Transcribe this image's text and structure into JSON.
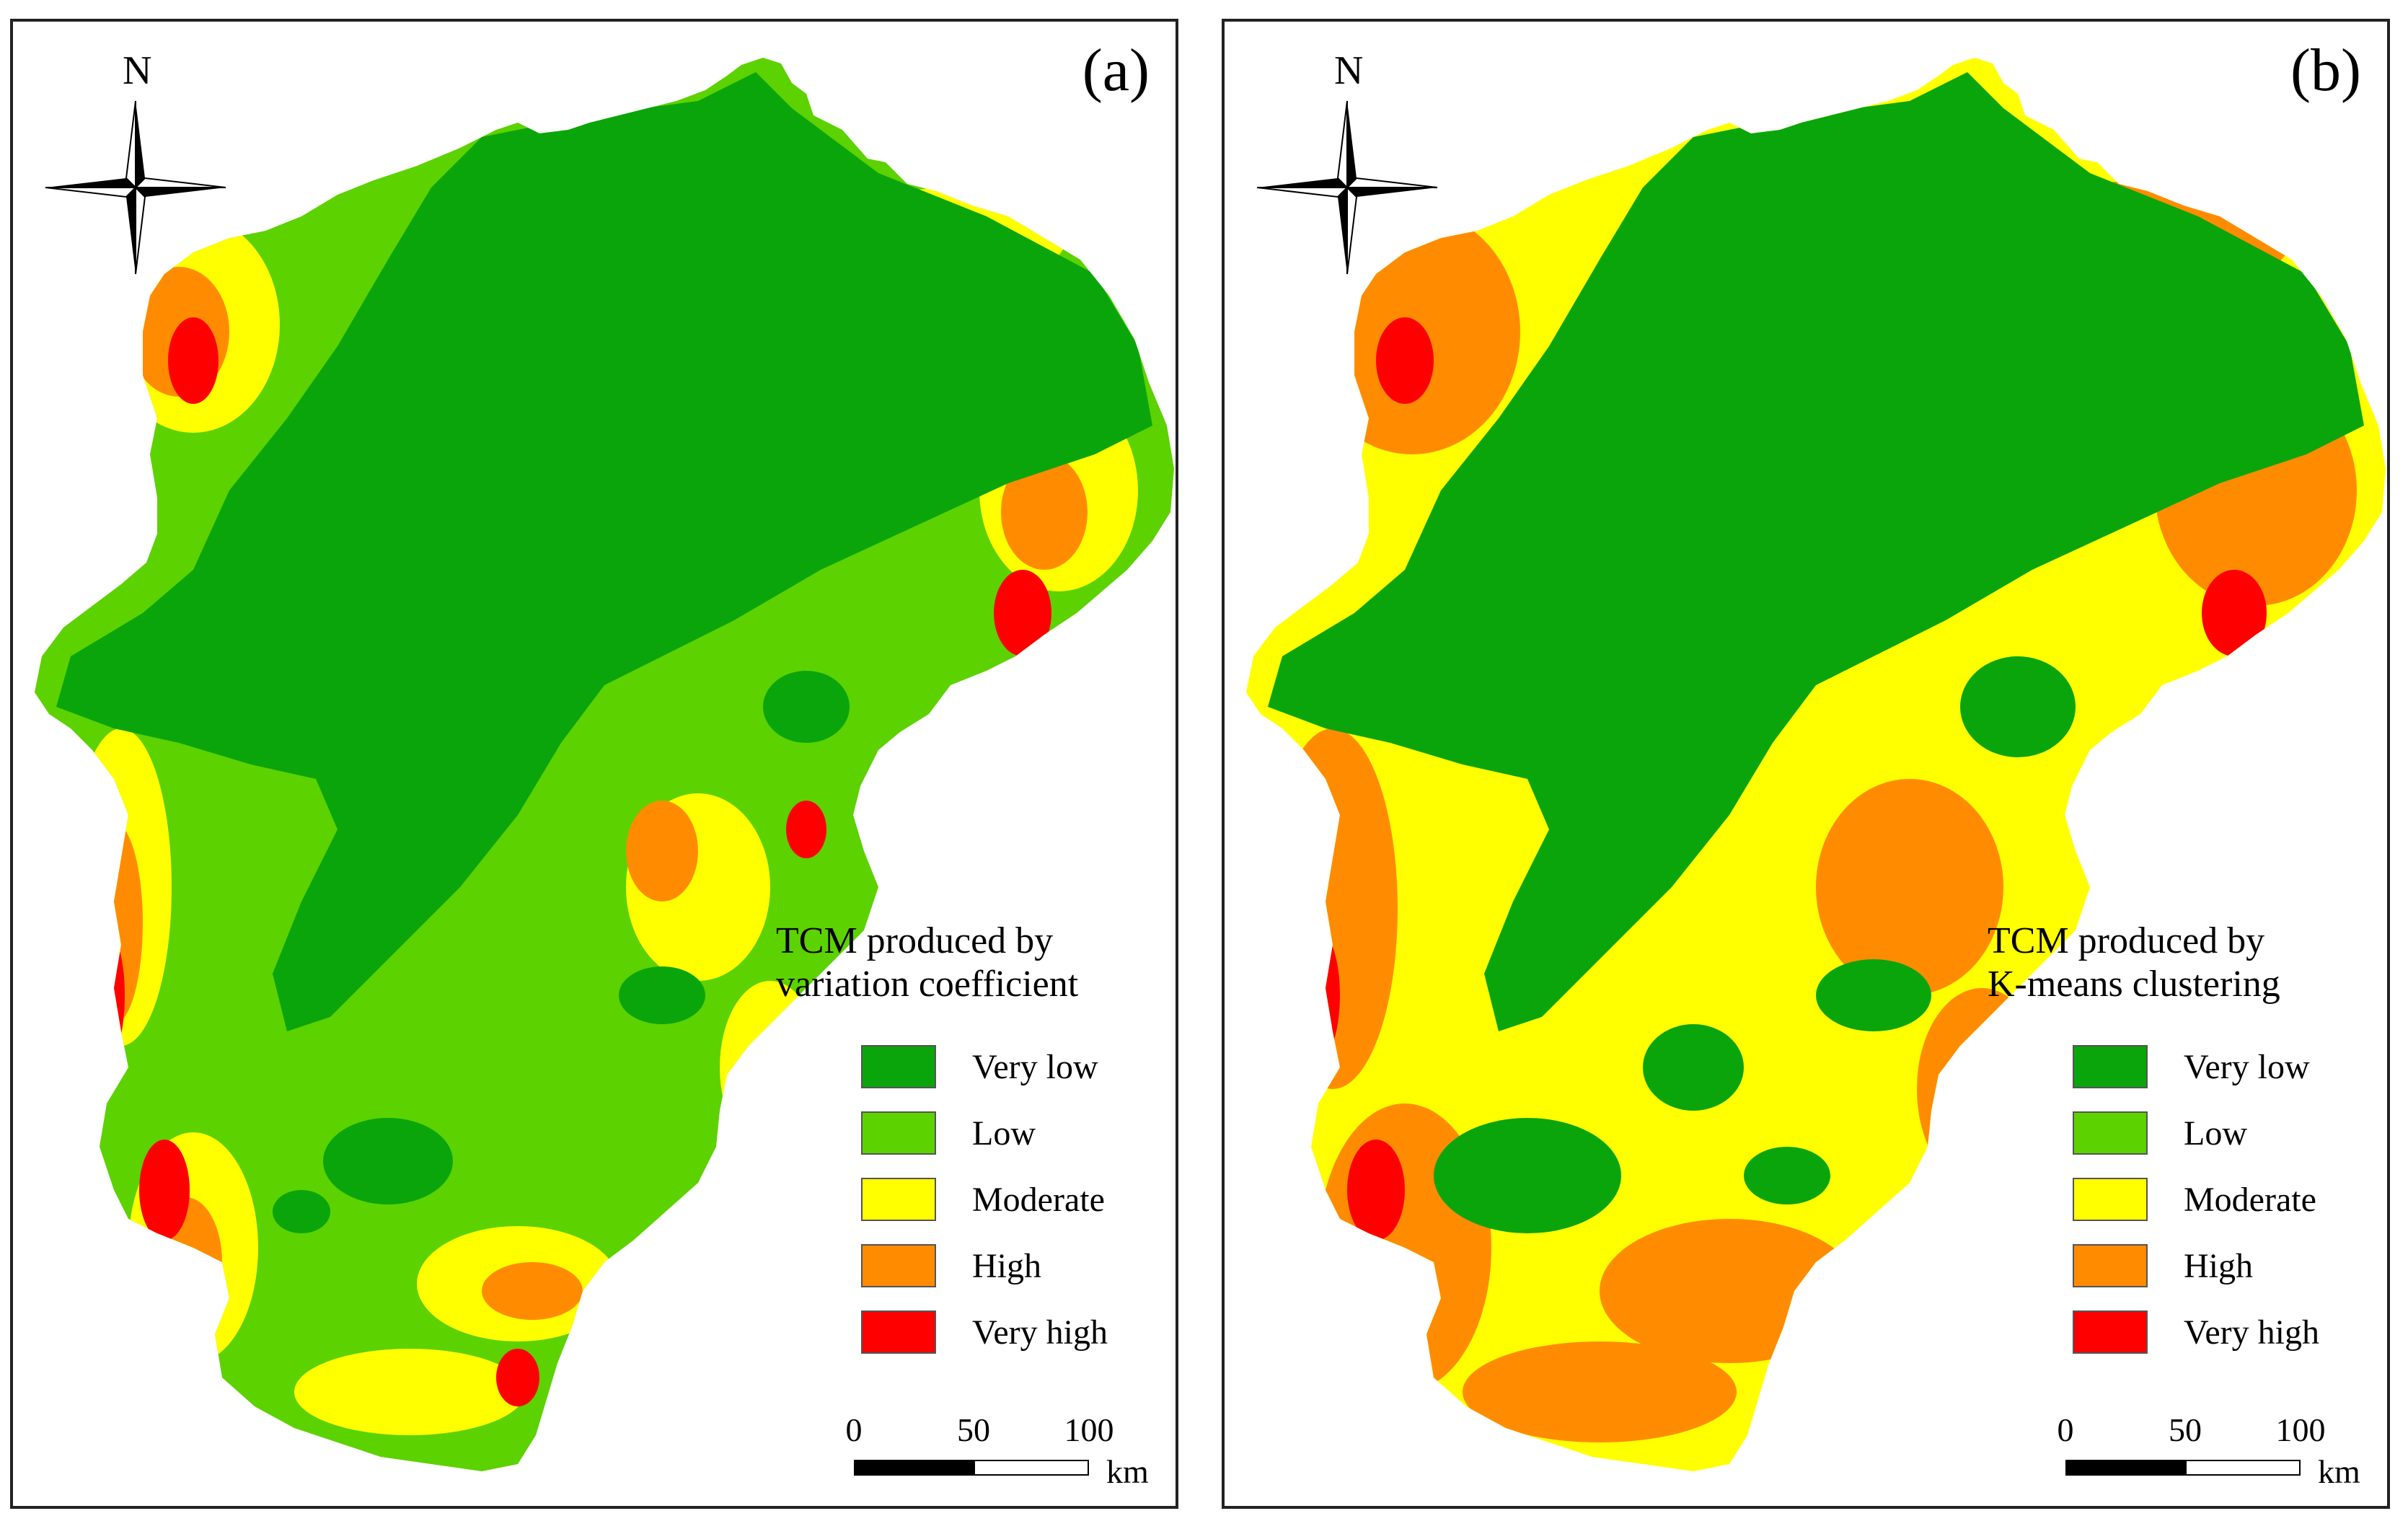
{
  "north_letter": "N",
  "panels": [
    {
      "label": "(a)",
      "legend_title_line1": "TCM produced by",
      "legend_title_line2": "variation coefficient"
    },
    {
      "label": "(b)",
      "legend_title_line1": "TCM produced by",
      "legend_title_line2": "K-means clustering"
    }
  ],
  "legend_items": [
    {
      "label": "Very low",
      "color": "#0aa50a"
    },
    {
      "label": "Low",
      "color": "#5cd200"
    },
    {
      "label": "Moderate",
      "color": "#ffff00"
    },
    {
      "label": "High",
      "color": "#ff8c00"
    },
    {
      "label": "Very high",
      "color": "#ff0000"
    }
  ],
  "scale": {
    "ticks": [
      "0",
      "50",
      "100"
    ],
    "unit": "km"
  }
}
